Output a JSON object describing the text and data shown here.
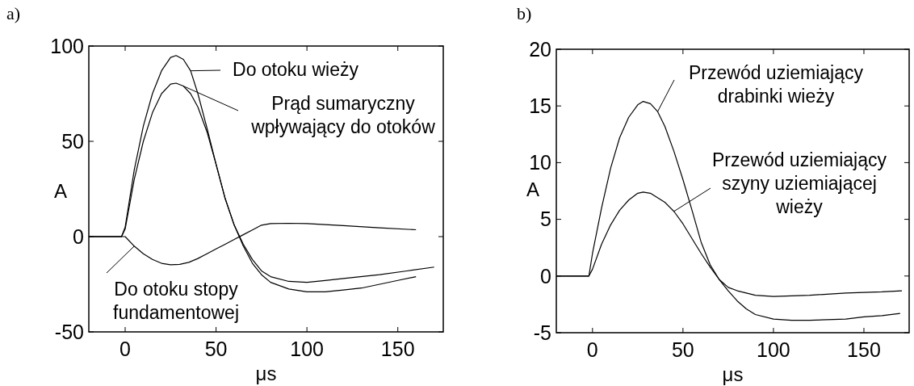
{
  "chart_data": [
    {
      "type": "line",
      "title": "a)",
      "legend": "top right",
      "xlabel": "μs",
      "ylabel": "A",
      "xlim": [
        -20,
        175
      ],
      "ylim": [
        -50,
        100
      ],
      "xticks": [
        0,
        50,
        100,
        150
      ],
      "yticks": [
        -50,
        0,
        50,
        100
      ],
      "series": [
        {
          "name": "Do otoku wieży",
          "color": "#000000",
          "x": [
            -20,
            -10,
            -2,
            0,
            5,
            10,
            15,
            20,
            25,
            28,
            32,
            36,
            40,
            45,
            50,
            55,
            60,
            65,
            70,
            75,
            80,
            90,
            100,
            110,
            120,
            130,
            140,
            150,
            160
          ],
          "values": [
            0,
            0,
            0,
            5,
            35,
            58,
            75,
            87,
            94,
            95,
            93,
            87,
            75,
            57,
            38,
            20,
            6,
            -5,
            -14,
            -20,
            -24,
            -27.5,
            -29,
            -29,
            -28,
            -27,
            -25,
            -23,
            -21
          ]
        },
        {
          "name": "Prąd sumaryczny wpływający do otoków",
          "color": "#000000",
          "x": [
            -20,
            -10,
            -2,
            0,
            5,
            10,
            15,
            20,
            25,
            28,
            32,
            36,
            40,
            45,
            50,
            55,
            60,
            65,
            70,
            75,
            80,
            90,
            100,
            110,
            120,
            140,
            155,
            170
          ],
          "values": [
            0,
            0,
            0,
            4,
            30,
            50,
            65,
            75,
            80,
            80.5,
            79,
            75,
            68,
            55,
            38,
            20,
            6,
            -4,
            -12,
            -18,
            -21,
            -23.5,
            -24,
            -23,
            -22,
            -20,
            -18,
            -16
          ]
        },
        {
          "name": "Do otoku stopy fundamentowej",
          "color": "#000000",
          "x": [
            -20,
            -10,
            -2,
            0,
            5,
            10,
            15,
            20,
            25,
            30,
            35,
            40,
            45,
            50,
            55,
            60,
            65,
            70,
            75,
            80,
            90,
            100,
            120,
            140,
            160
          ],
          "values": [
            0,
            0,
            0,
            0,
            -5,
            -9,
            -12,
            -14,
            -14.8,
            -14.6,
            -13.5,
            -11.5,
            -9,
            -6.5,
            -4,
            -1.5,
            1,
            3.5,
            6,
            6.8,
            7,
            6.8,
            5.8,
            4.6,
            3.6
          ]
        }
      ]
    },
    {
      "type": "line",
      "title": "b)",
      "xlabel": "μs",
      "ylabel": "A",
      "xlim": [
        -20,
        175
      ],
      "ylim": [
        -5,
        20
      ],
      "xticks": [
        0,
        50,
        100,
        150
      ],
      "yticks": [
        -5,
        0,
        5,
        10,
        15,
        20
      ],
      "series": [
        {
          "name": "Przewód uziemiający drabinki wieży",
          "color": "#000000",
          "x": [
            -20,
            -10,
            -2,
            0,
            5,
            10,
            15,
            20,
            25,
            28,
            32,
            36,
            40,
            45,
            50,
            55,
            60,
            65,
            70,
            75,
            80,
            90,
            100,
            120,
            140,
            160,
            171
          ],
          "values": [
            0,
            0,
            0,
            2,
            6,
            9.5,
            12.2,
            14,
            15.1,
            15.4,
            15.2,
            14.5,
            13.2,
            11,
            8.5,
            5.8,
            3,
            1,
            -0.3,
            -1,
            -1.3,
            -1.7,
            -1.8,
            -1.7,
            -1.5,
            -1.4,
            -1.3
          ]
        },
        {
          "name": "Przewód uziemiający szyny uziemiającej wieży",
          "color": "#000000",
          "x": [
            -20,
            -10,
            -2,
            0,
            5,
            10,
            15,
            20,
            25,
            28,
            32,
            40,
            45,
            50,
            55,
            60,
            65,
            70,
            75,
            80,
            85,
            90,
            100,
            110,
            120,
            140,
            150,
            160,
            170
          ],
          "values": [
            0,
            0,
            0,
            0.6,
            2.8,
            4.5,
            5.8,
            6.7,
            7.3,
            7.4,
            7.3,
            6.5,
            5.7,
            4.6,
            3.3,
            2,
            0.8,
            -0.3,
            -1.3,
            -2.2,
            -2.9,
            -3.4,
            -3.8,
            -3.9,
            -3.9,
            -3.8,
            -3.6,
            -3.5,
            -3.3
          ]
        }
      ]
    }
  ]
}
